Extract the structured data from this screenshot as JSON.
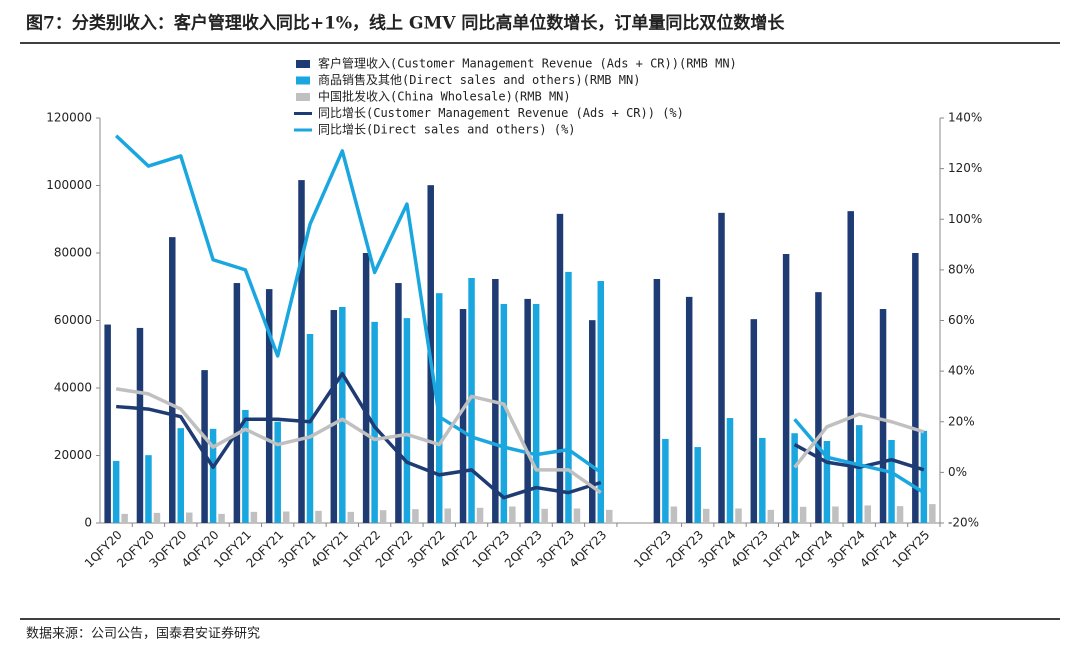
{
  "title": "图7：分类别收入：客户管理收入同比+1%，线上 GMV 同比高单位数增长，订单量同比双位数增长",
  "source": "数据来源：公司公告，国泰君安证券研究",
  "chart_data": {
    "type": "bar",
    "categories": [
      "1QFY20",
      "2QFY20",
      "3QFY20",
      "4QFY20",
      "1QFY21",
      "2QFY21",
      "3QFY21",
      "4QFY21",
      "1QFY22",
      "2QFY22",
      "3QFY22",
      "4QFY22",
      "1QFY23",
      "2QFY23",
      "3QFY23",
      "4QFY23",
      null,
      "1QFY23",
      "2QFY23",
      "3QFY24",
      "4QFY23",
      "1QFY24",
      "2QFY24",
      "3QFY24",
      "4QFY24",
      "1QFY25"
    ],
    "series": [
      {
        "name": "客户管理收入(Customer Management Revenue (Ads + CR))(RMB MN)",
        "type": "bar",
        "color": "#1f3b73",
        "values": [
          58800,
          57800,
          84700,
          45300,
          71100,
          69300,
          101600,
          63100,
          80000,
          71100,
          100100,
          63400,
          72300,
          66400,
          91600,
          60100,
          null,
          72300,
          67000,
          91900,
          60400,
          79700,
          68400,
          92400,
          63400,
          80000
        ]
      },
      {
        "name": "商品销售及其他(Direct sales and others)(RMB MN)",
        "type": "bar",
        "color": "#1aa7e0",
        "values": [
          18400,
          20100,
          28100,
          27900,
          33500,
          30000,
          56000,
          64000,
          59600,
          60700,
          68100,
          72600,
          64900,
          64900,
          74400,
          71700,
          null,
          24900,
          22500,
          31100,
          25200,
          26600,
          24300,
          29000,
          24600,
          27300
        ]
      },
      {
        "name": "中国批发收入(China Wholesale)(RMB MN)",
        "type": "bar",
        "color": "#c0c0c0",
        "values": [
          2700,
          3000,
          3100,
          2700,
          3300,
          3400,
          3600,
          3300,
          3800,
          4100,
          4300,
          4500,
          4900,
          4200,
          4300,
          3900,
          null,
          4900,
          4200,
          4300,
          3900,
          4800,
          4900,
          5200,
          5000,
          5600
        ]
      },
      {
        "name": "同比增长(Customer Management Revenue (Ads + CR)) (%)",
        "type": "line",
        "axis": "y2",
        "color": "#1f3b73",
        "values": [
          26,
          25,
          22,
          2,
          21,
          21,
          20,
          39,
          18,
          4,
          -1,
          1,
          -10,
          -6,
          -8,
          -4,
          null,
          null,
          null,
          null,
          null,
          11,
          4,
          2,
          5,
          1
        ]
      },
      {
        "name": "同比增长(Direct sales and others) (%)",
        "type": "line",
        "axis": "y2",
        "color": "#1aa7e0",
        "values": [
          133,
          121,
          125,
          84,
          80,
          46,
          98,
          127,
          79,
          106,
          22,
          14,
          10,
          7,
          9,
          0,
          null,
          null,
          null,
          null,
          null,
          21,
          6,
          3,
          0,
          -8
        ]
      },
      {
        "type": "line",
        "axis": "y2",
        "color": "#c0c0c0",
        "values": [
          33,
          31,
          25,
          10,
          17,
          11,
          14,
          21,
          13,
          15,
          11,
          30,
          27,
          1,
          1,
          -8,
          null,
          null,
          null,
          null,
          null,
          2,
          18,
          23,
          20,
          16
        ]
      }
    ],
    "ylim": [
      0,
      120000
    ],
    "yticks": [
      0,
      20000,
      40000,
      60000,
      80000,
      100000,
      120000
    ],
    "y2lim": [
      -20,
      140
    ],
    "y2ticks": [
      {
        "value": -20,
        "label": "-20%"
      },
      {
        "value": 0,
        "label": "0%"
      },
      {
        "value": 20,
        "label": "20%"
      },
      {
        "value": 40,
        "label": "40%"
      },
      {
        "value": 60,
        "label": "60%"
      },
      {
        "value": 80,
        "label": "80%"
      },
      {
        "value": 100,
        "label": "100%"
      },
      {
        "value": 120,
        "label": "120%"
      },
      {
        "value": 140,
        "label": "140%"
      }
    ],
    "grid": false
  }
}
